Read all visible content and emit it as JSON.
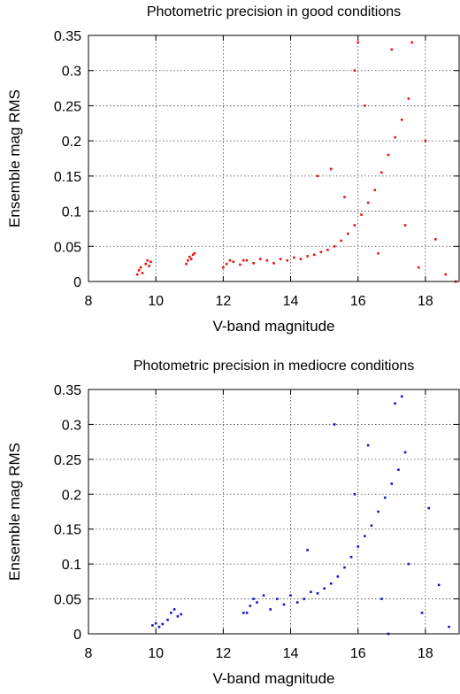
{
  "chart_data": [
    {
      "type": "scatter",
      "title": "Photometric precision in good conditions",
      "xlabel": "V-band magnitude",
      "ylabel": "Ensemble mag RMS",
      "xlim": [
        8,
        19
      ],
      "ylim": [
        0,
        0.35
      ],
      "xticks": [
        "8",
        "10",
        "12",
        "14",
        "16",
        "18"
      ],
      "yticks": [
        "0",
        "0.05",
        "0.1",
        "0.15",
        "0.2",
        "0.25",
        "0.3",
        "0.35"
      ],
      "grid": true,
      "color": "#e8140c",
      "series": [
        {
          "points": [
            [
              9.45,
              0.01
            ],
            [
              9.5,
              0.016
            ],
            [
              9.55,
              0.02
            ],
            [
              9.6,
              0.012
            ],
            [
              9.7,
              0.025
            ],
            [
              9.75,
              0.03
            ],
            [
              9.8,
              0.022
            ],
            [
              9.85,
              0.028
            ],
            [
              10.9,
              0.025
            ],
            [
              10.95,
              0.03
            ],
            [
              11.0,
              0.035
            ],
            [
              11.05,
              0.032
            ],
            [
              11.1,
              0.038
            ],
            [
              11.15,
              0.04
            ],
            [
              12.0,
              0.02
            ],
            [
              12.1,
              0.025
            ],
            [
              12.2,
              0.03
            ],
            [
              12.3,
              0.028
            ],
            [
              12.5,
              0.024
            ],
            [
              12.7,
              0.03
            ],
            [
              12.9,
              0.026
            ],
            [
              13.1,
              0.032
            ],
            [
              13.3,
              0.03
            ],
            [
              13.5,
              0.026
            ],
            [
              13.7,
              0.032
            ],
            [
              13.9,
              0.03
            ],
            [
              14.1,
              0.034
            ],
            [
              14.3,
              0.032
            ],
            [
              14.5,
              0.036
            ],
            [
              14.7,
              0.038
            ],
            [
              14.9,
              0.042
            ],
            [
              15.1,
              0.045
            ],
            [
              15.3,
              0.05
            ],
            [
              15.5,
              0.058
            ],
            [
              15.7,
              0.068
            ],
            [
              15.9,
              0.08
            ],
            [
              16.1,
              0.095
            ],
            [
              16.3,
              0.112
            ],
            [
              16.5,
              0.13
            ],
            [
              16.7,
              0.155
            ],
            [
              16.9,
              0.18
            ],
            [
              17.1,
              0.205
            ],
            [
              17.3,
              0.23
            ],
            [
              17.5,
              0.26
            ],
            [
              15.2,
              0.16
            ],
            [
              15.6,
              0.12
            ],
            [
              15.9,
              0.3
            ],
            [
              16.2,
              0.25
            ],
            [
              16.6,
              0.04
            ],
            [
              17.0,
              0.33
            ],
            [
              17.4,
              0.08
            ],
            [
              17.8,
              0.02
            ],
            [
              18.0,
              0.2
            ],
            [
              18.3,
              0.06
            ],
            [
              18.6,
              0.01
            ],
            [
              18.9,
              0.0
            ],
            [
              16.0,
              0.34
            ],
            [
              17.6,
              0.34
            ],
            [
              12.6,
              0.03
            ],
            [
              14.8,
              0.15
            ]
          ]
        }
      ]
    },
    {
      "type": "scatter",
      "title": "Photometric precision in mediocre conditions",
      "xlabel": "V-band magnitude",
      "ylabel": "Ensemble mag RMS",
      "xlim": [
        8,
        19
      ],
      "ylim": [
        0,
        0.35
      ],
      "xticks": [
        "8",
        "10",
        "12",
        "14",
        "16",
        "18"
      ],
      "yticks": [
        "0",
        "0.05",
        "0.1",
        "0.15",
        "0.2",
        "0.25",
        "0.3",
        "0.35"
      ],
      "grid": true,
      "color": "#1414d2",
      "series": [
        {
          "points": [
            [
              9.9,
              0.012
            ],
            [
              10.0,
              0.015
            ],
            [
              10.1,
              0.01
            ],
            [
              10.2,
              0.014
            ],
            [
              10.35,
              0.02
            ],
            [
              10.45,
              0.03
            ],
            [
              10.55,
              0.035
            ],
            [
              10.65,
              0.025
            ],
            [
              10.75,
              0.028
            ],
            [
              12.7,
              0.03
            ],
            [
              12.8,
              0.04
            ],
            [
              12.9,
              0.05
            ],
            [
              13.0,
              0.045
            ],
            [
              13.2,
              0.055
            ],
            [
              13.4,
              0.035
            ],
            [
              13.6,
              0.05
            ],
            [
              13.8,
              0.042
            ],
            [
              14.0,
              0.055
            ],
            [
              14.2,
              0.045
            ],
            [
              14.4,
              0.05
            ],
            [
              14.6,
              0.06
            ],
            [
              14.8,
              0.058
            ],
            [
              15.0,
              0.065
            ],
            [
              15.2,
              0.072
            ],
            [
              15.4,
              0.082
            ],
            [
              15.6,
              0.095
            ],
            [
              15.8,
              0.11
            ],
            [
              16.0,
              0.125
            ],
            [
              16.2,
              0.14
            ],
            [
              16.4,
              0.155
            ],
            [
              16.6,
              0.175
            ],
            [
              16.8,
              0.195
            ],
            [
              17.0,
              0.215
            ],
            [
              17.2,
              0.235
            ],
            [
              17.4,
              0.26
            ],
            [
              15.3,
              0.3
            ],
            [
              15.9,
              0.2
            ],
            [
              16.3,
              0.27
            ],
            [
              16.7,
              0.05
            ],
            [
              17.1,
              0.33
            ],
            [
              17.5,
              0.1
            ],
            [
              17.9,
              0.03
            ],
            [
              18.1,
              0.18
            ],
            [
              18.4,
              0.07
            ],
            [
              18.7,
              0.01
            ],
            [
              16.9,
              0.0
            ],
            [
              17.3,
              0.34
            ],
            [
              12.6,
              0.03
            ],
            [
              14.5,
              0.12
            ]
          ]
        }
      ]
    }
  ]
}
